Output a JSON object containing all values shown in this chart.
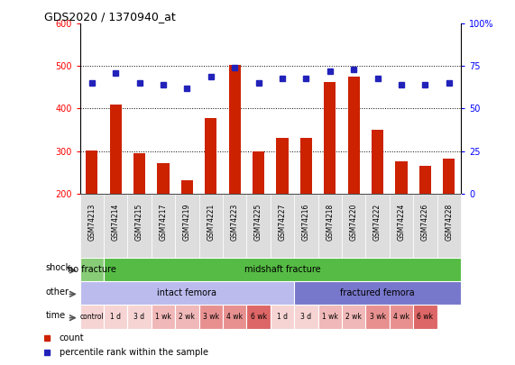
{
  "title": "GDS2020 / 1370940_at",
  "samples": [
    "GSM74213",
    "GSM74214",
    "GSM74215",
    "GSM74217",
    "GSM74219",
    "GSM74221",
    "GSM74223",
    "GSM74225",
    "GSM74227",
    "GSM74216",
    "GSM74218",
    "GSM74220",
    "GSM74222",
    "GSM74224",
    "GSM74226",
    "GSM74228"
  ],
  "counts": [
    302,
    410,
    295,
    272,
    232,
    378,
    502,
    300,
    332,
    330,
    462,
    475,
    350,
    275,
    265,
    282
  ],
  "percentiles": [
    65,
    71,
    65,
    64,
    62,
    69,
    74,
    65,
    68,
    68,
    72,
    73,
    68,
    64,
    64,
    65
  ],
  "ylim_left": [
    200,
    600
  ],
  "ylim_right": [
    0,
    100
  ],
  "yticks_left": [
    200,
    300,
    400,
    500,
    600
  ],
  "yticks_right": [
    0,
    25,
    50,
    75,
    100
  ],
  "bar_color": "#cc2200",
  "dot_color": "#2222bb",
  "plot_bg": "#ffffff",
  "shock_row": {
    "label": "shock",
    "segments": [
      {
        "text": "no fracture",
        "start": 0,
        "end": 1,
        "color": "#88cc77"
      },
      {
        "text": "midshaft fracture",
        "start": 1,
        "end": 16,
        "color": "#55bb44"
      }
    ]
  },
  "other_row": {
    "label": "other",
    "segments": [
      {
        "text": "intact femora",
        "start": 0,
        "end": 9,
        "color": "#bbbbee"
      },
      {
        "text": "fractured femora",
        "start": 9,
        "end": 16,
        "color": "#7777cc"
      }
    ]
  },
  "time_row": {
    "label": "time",
    "cells": [
      {
        "text": "control",
        "start": 0,
        "end": 1,
        "color": "#f7d4d4"
      },
      {
        "text": "1 d",
        "start": 1,
        "end": 2,
        "color": "#f7d4d4"
      },
      {
        "text": "3 d",
        "start": 2,
        "end": 3,
        "color": "#f7d4d4"
      },
      {
        "text": "1 wk",
        "start": 3,
        "end": 4,
        "color": "#f0b8b8"
      },
      {
        "text": "2 wk",
        "start": 4,
        "end": 5,
        "color": "#f0b8b8"
      },
      {
        "text": "3 wk",
        "start": 5,
        "end": 6,
        "color": "#e89090"
      },
      {
        "text": "4 wk",
        "start": 6,
        "end": 7,
        "color": "#e89090"
      },
      {
        "text": "6 wk",
        "start": 7,
        "end": 8,
        "color": "#dd6666"
      },
      {
        "text": "1 d",
        "start": 8,
        "end": 9,
        "color": "#f7d4d4"
      },
      {
        "text": "3 d",
        "start": 9,
        "end": 10,
        "color": "#f7d4d4"
      },
      {
        "text": "1 wk",
        "start": 10,
        "end": 11,
        "color": "#f0b8b8"
      },
      {
        "text": "2 wk",
        "start": 11,
        "end": 12,
        "color": "#f0b8b8"
      },
      {
        "text": "3 wk",
        "start": 12,
        "end": 13,
        "color": "#e89090"
      },
      {
        "text": "4 wk",
        "start": 13,
        "end": 14,
        "color": "#e89090"
      },
      {
        "text": "6 wk",
        "start": 14,
        "end": 15,
        "color": "#dd6666"
      }
    ]
  },
  "sample_bg": "#dddddd",
  "legend": [
    {
      "label": "count",
      "color": "#cc2200"
    },
    {
      "label": "percentile rank within the sample",
      "color": "#2222bb"
    }
  ]
}
